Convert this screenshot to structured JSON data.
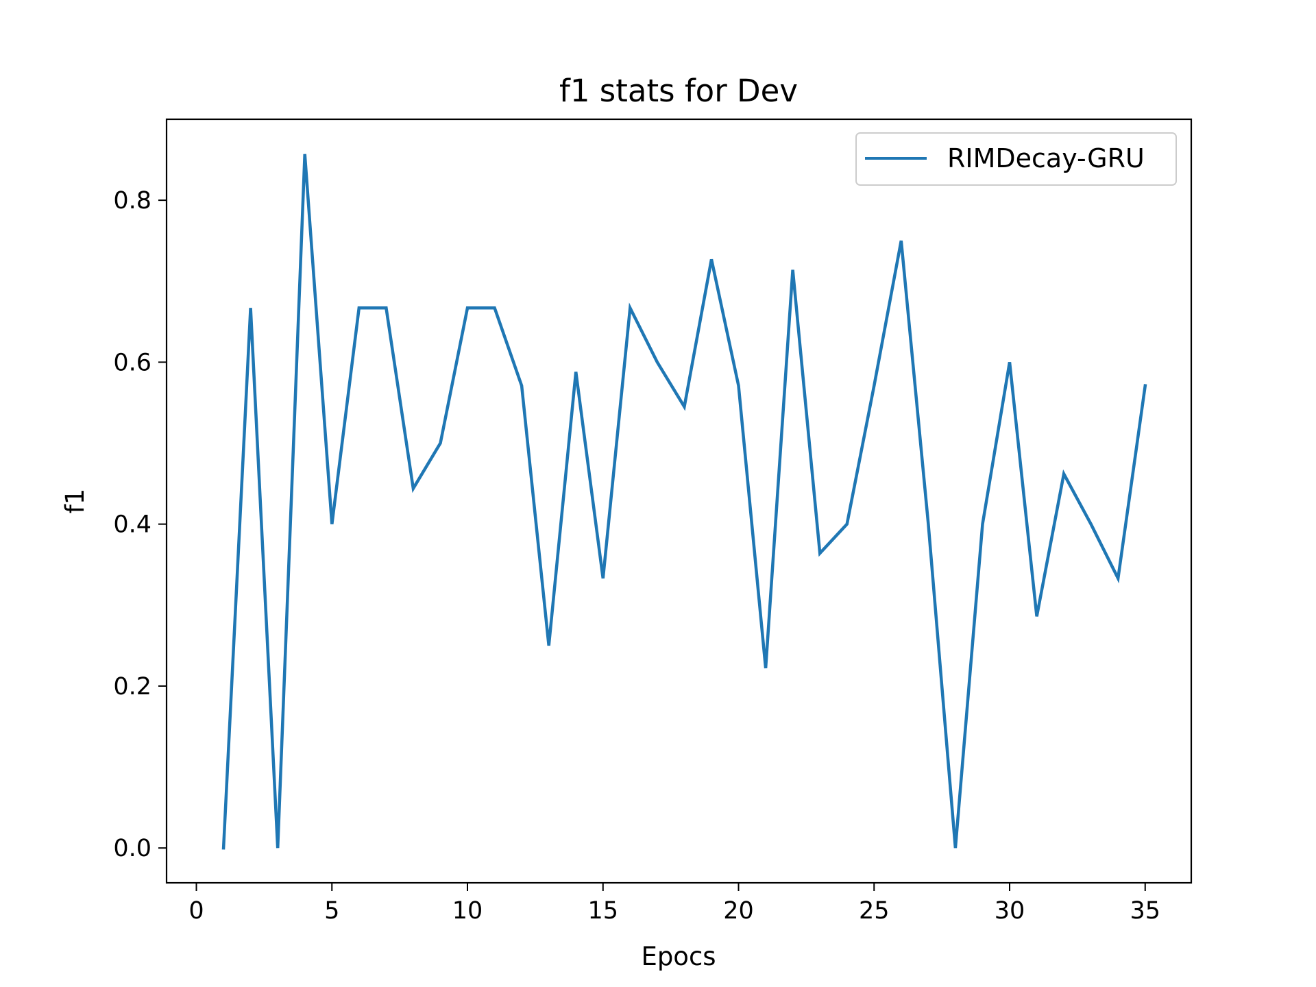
{
  "chart_data": {
    "type": "line",
    "title": "f1 stats for Dev",
    "xlabel": "Epocs",
    "ylabel": "f1",
    "xlim": [
      -1.1,
      36.7
    ],
    "ylim": [
      -0.043,
      0.9
    ],
    "xticks": [
      0,
      5,
      10,
      15,
      20,
      25,
      30,
      35
    ],
    "yticks": [
      0.0,
      0.2,
      0.4,
      0.6,
      0.8
    ],
    "ytick_labels": [
      "0.0",
      "0.2",
      "0.4",
      "0.6",
      "0.8"
    ],
    "grid": false,
    "legend_position": "top-right",
    "series": [
      {
        "name": "RIMDecay-GRU",
        "color": "#1f77b4",
        "x": [
          1,
          2,
          3,
          4,
          5,
          6,
          7,
          8,
          9,
          10,
          11,
          12,
          13,
          14,
          15,
          16,
          17,
          18,
          19,
          20,
          21,
          22,
          23,
          24,
          25,
          26,
          27,
          28,
          29,
          30,
          31,
          32,
          33,
          34,
          35
        ],
        "y": [
          0.0,
          0.667,
          0.0,
          0.857,
          0.4,
          0.667,
          0.667,
          0.444,
          0.5,
          0.667,
          0.667,
          0.571,
          0.25,
          0.588,
          0.333,
          0.667,
          0.6,
          0.545,
          0.727,
          0.571,
          0.222,
          0.714,
          0.364,
          0.4,
          0.571,
          0.75,
          0.4,
          0.0,
          0.4,
          0.6,
          0.286,
          0.462,
          0.4,
          0.333,
          0.571
        ]
      }
    ]
  }
}
